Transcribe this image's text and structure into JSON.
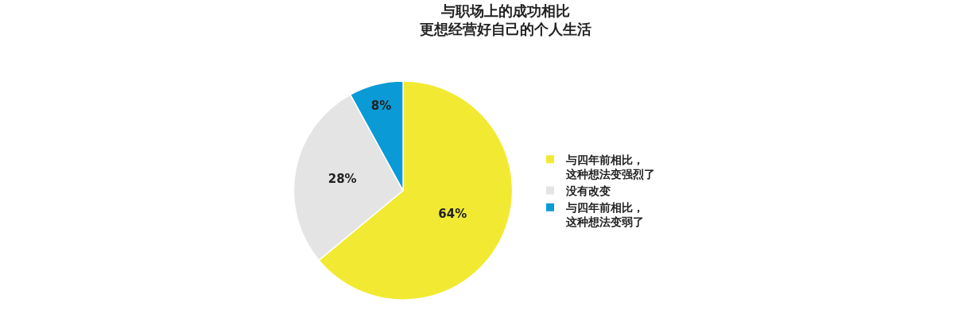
{
  "chart_data": {
    "type": "pie",
    "title": "与职场上的成功相比更想经营好自己的个人生活",
    "categories": [
      "与四年前相比，这种想法变强烈了",
      "没有改变",
      "与四年前相比，这种想法变弱了"
    ],
    "values": [
      64,
      28,
      8
    ],
    "colors": [
      "#f2ea32",
      "#e4e4e4",
      "#0a9bd6"
    ],
    "value_labels": [
      "64%",
      "28%",
      "8%"
    ],
    "legend": "right"
  }
}
